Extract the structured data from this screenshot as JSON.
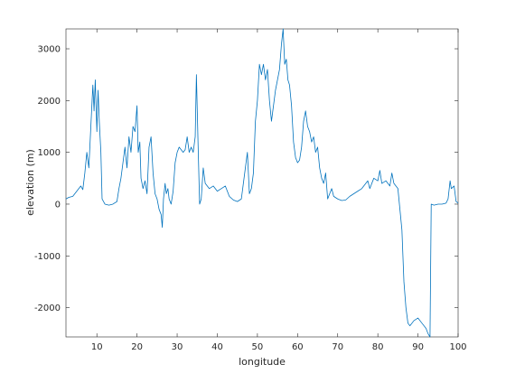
{
  "chart_data": {
    "type": "line",
    "x_label": "longitude",
    "y_label": "elevation (m)",
    "x": [
      2.3,
      3,
      4,
      5,
      6,
      6.5,
      7,
      7.5,
      8,
      8.5,
      9,
      9.3,
      9.6,
      10,
      10.3,
      10.6,
      11,
      11.3,
      12,
      13,
      14,
      15,
      15.5,
      16,
      16.5,
      17,
      17.5,
      18,
      18.5,
      19,
      19.5,
      20,
      20.3,
      20.7,
      21,
      21.5,
      22,
      22.5,
      23,
      23.5,
      24,
      24.5,
      25,
      25.5,
      26,
      26.3,
      26.6,
      27,
      27.3,
      27.7,
      28,
      28.5,
      29,
      29.5,
      30,
      30.5,
      31,
      31.5,
      32,
      32.5,
      33,
      33.5,
      34,
      34.5,
      34.8,
      35.2,
      35.6,
      36,
      36.5,
      37,
      38,
      39,
      40,
      41,
      42,
      43,
      44,
      45,
      46,
      46.5,
      47,
      47.5,
      48,
      48.5,
      49,
      49.5,
      50,
      50.5,
      51,
      51.5,
      52,
      52.5,
      53,
      53.5,
      54,
      54.5,
      55,
      55.5,
      56,
      56.4,
      56.8,
      57.2,
      57.6,
      58,
      58.5,
      59,
      59.5,
      60,
      60.5,
      61,
      61.5,
      62,
      62.5,
      63,
      63.5,
      64,
      64.5,
      65,
      65.5,
      66,
      66.5,
      67,
      67.5,
      68,
      68.5,
      69,
      70,
      71,
      72,
      73,
      74,
      75,
      76,
      77,
      77.5,
      78,
      79,
      80,
      80.5,
      81,
      82,
      83,
      83.5,
      84,
      84.5,
      85,
      85.5,
      86,
      86.5,
      87,
      87.5,
      88,
      89,
      90,
      91,
      92,
      92.5,
      93,
      93.3,
      94,
      95,
      96,
      97,
      97.5,
      98,
      98.3,
      99,
      99.5,
      100
    ],
    "series": [
      {
        "color": "#0072bd",
        "values": [
          100,
          130,
          150,
          250,
          350,
          280,
          600,
          1000,
          700,
          1500,
          2300,
          1800,
          2400,
          1400,
          2200,
          1600,
          1000,
          100,
          0,
          -20,
          0,
          50,
          300,
          500,
          800,
          1100,
          700,
          1300,
          1000,
          1500,
          1400,
          1900,
          1000,
          1200,
          500,
          300,
          450,
          200,
          1100,
          1300,
          600,
          200,
          100,
          -100,
          -200,
          -450,
          100,
          400,
          200,
          300,
          100,
          0,
          250,
          800,
          1000,
          1100,
          1050,
          1000,
          1050,
          1300,
          1000,
          1100,
          1000,
          1300,
          2500,
          1200,
          0,
          100,
          700,
          400,
          300,
          350,
          250,
          300,
          350,
          150,
          80,
          50,
          100,
          400,
          700,
          1000,
          200,
          300,
          600,
          1600,
          2000,
          2700,
          2500,
          2700,
          2400,
          2600,
          2000,
          1600,
          1900,
          2200,
          2400,
          2600,
          3100,
          3384,
          2700,
          2800,
          2400,
          2300,
          1900,
          1200,
          900,
          800,
          850,
          1100,
          1600,
          1800,
          1500,
          1400,
          1200,
          1300,
          1000,
          1100,
          700,
          500,
          400,
          600,
          100,
          200,
          300,
          150,
          100,
          70,
          80,
          150,
          200,
          250,
          300,
          400,
          450,
          300,
          500,
          450,
          650,
          400,
          450,
          350,
          600,
          400,
          350,
          300,
          -100,
          -500,
          -1500,
          -2000,
          -2300,
          -2350,
          -2250,
          -2200,
          -2300,
          -2400,
          -2500,
          -2565,
          0,
          -20,
          0,
          0,
          20,
          100,
          450,
          300,
          350,
          50,
          20
        ]
      }
    ],
    "xlim": [
      2.3,
      100
    ],
    "ylim": [
      -2565,
      3384
    ],
    "xticks": [
      10,
      20,
      30,
      40,
      50,
      60,
      70,
      80,
      90,
      100
    ],
    "yticks": [
      -2000,
      -1000,
      0,
      1000,
      2000,
      3000
    ],
    "grid": false
  }
}
